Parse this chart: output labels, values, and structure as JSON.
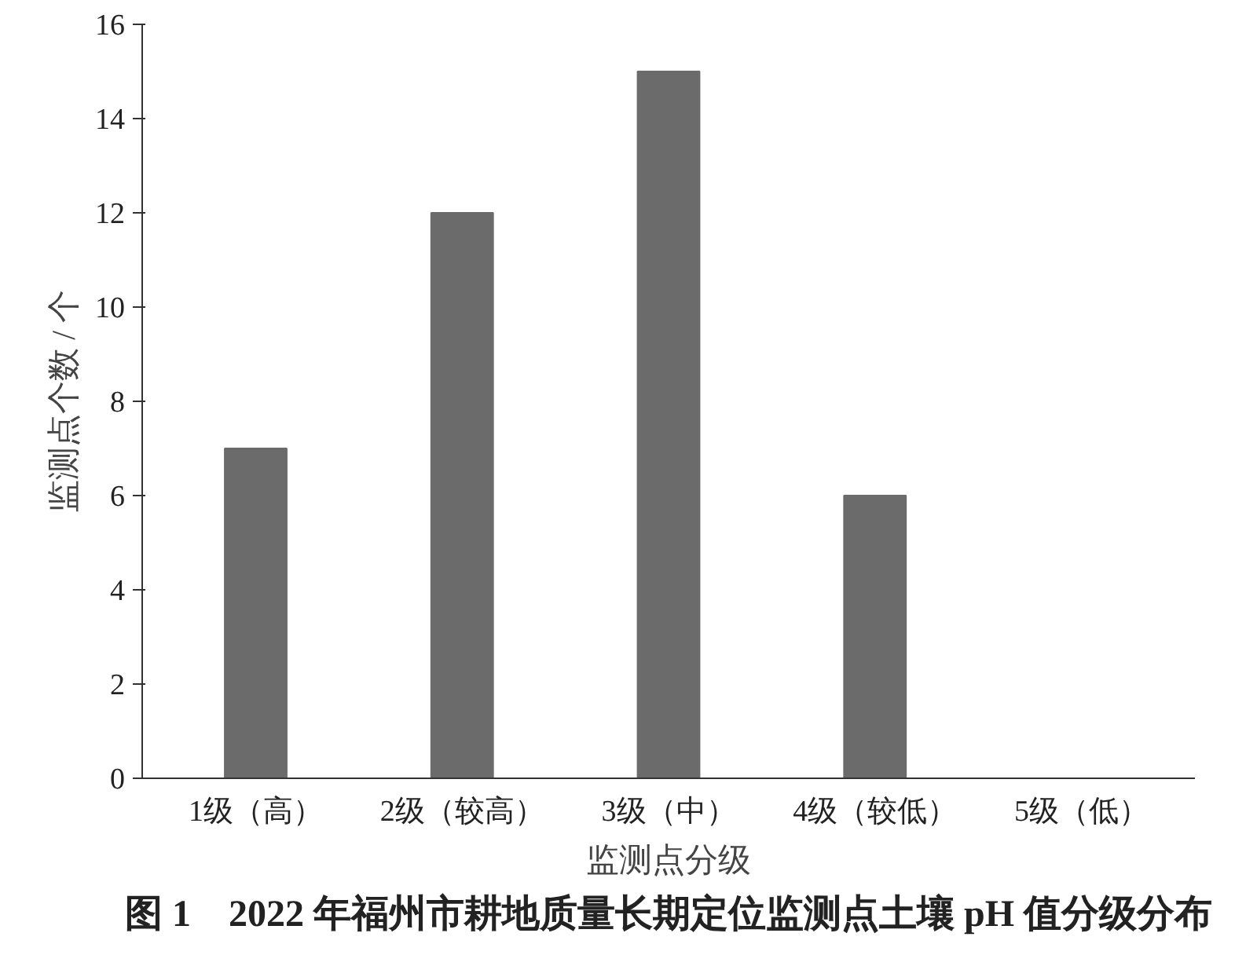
{
  "chart_data": {
    "type": "bar",
    "title": "图 1　2022 年福州市耕地质量长期定位监测点土壤 pH 值分级分布",
    "xlabel": "监测点分级",
    "ylabel": "监测点个数 / 个",
    "categories": [
      "1级（高）",
      "2级（较高）",
      "3级（中）",
      "4级（较低）",
      "5级（低）"
    ],
    "values": [
      7,
      12,
      15,
      6,
      0
    ],
    "color": "#6b6b6b",
    "ylim": [
      0,
      16
    ],
    "yticks": [
      0,
      2,
      4,
      6,
      8,
      10,
      12,
      14,
      16
    ],
    "grid": false
  }
}
